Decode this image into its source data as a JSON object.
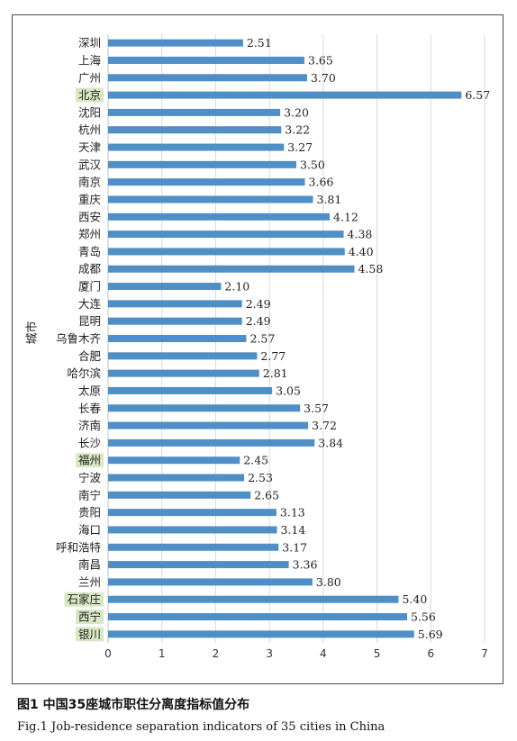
{
  "chart_data": {
    "type": "bar",
    "orientation": "horizontal",
    "categories": [
      "深圳",
      "上海",
      "广州",
      "北京",
      "沈阳",
      "杭州",
      "天津",
      "武汉",
      "南京",
      "重庆",
      "西安",
      "郑州",
      "青岛",
      "成都",
      "厦门",
      "大连",
      "昆明",
      "乌鲁木齐",
      "合肥",
      "哈尔滨",
      "太原",
      "长春",
      "济南",
      "长沙",
      "福州",
      "宁波",
      "南宁",
      "贵阳",
      "海口",
      "呼和浩特",
      "南昌",
      "兰州",
      "石家庄",
      "西宁",
      "银川"
    ],
    "values": [
      2.51,
      3.65,
      3.7,
      6.57,
      3.2,
      3.22,
      3.27,
      3.5,
      3.66,
      3.81,
      4.12,
      4.38,
      4.4,
      4.58,
      2.1,
      2.49,
      2.49,
      2.57,
      2.77,
      2.81,
      3.05,
      3.57,
      3.72,
      3.84,
      2.45,
      2.53,
      2.65,
      3.13,
      3.14,
      3.17,
      3.36,
      3.8,
      5.4,
      5.56,
      5.69
    ],
    "value_labels": [
      "2.51",
      "3.65",
      "3.70",
      "6.57",
      "3.20",
      "3.22",
      "3.27",
      "3.50",
      "3.66",
      "3.81",
      "4.12",
      "4.38",
      "4.40",
      "4.58",
      "2.10",
      "2.49",
      "2.49",
      "2.57",
      "2.77",
      "2.81",
      "3.05",
      "3.57",
      "3.72",
      "3.84",
      "2.45",
      "2.53",
      "2.65",
      "3.13",
      "3.14",
      "3.17",
      "3.36",
      "3.80",
      "5.40",
      "5.56",
      "5.69"
    ],
    "highlighted_categories": [
      "北京",
      "福州",
      "石家庄",
      "西宁",
      "银川"
    ],
    "xlim": [
      0,
      7
    ],
    "x_ticks": [
      "0",
      "1",
      "2",
      "3",
      "4",
      "5",
      "6",
      "7"
    ],
    "ylabel": "城市",
    "xlabel": "",
    "grid": "vertical",
    "legend": "none",
    "colors": {
      "bar": "#4f8fc5",
      "highlight": "#d8e8c4",
      "grid": "#d9d9d9"
    }
  },
  "caption": {
    "zh": "图1 中国35座城市职住分离度指标值分布",
    "en": "Fig.1 Job-residence separation indicators of 35 cities in China"
  }
}
